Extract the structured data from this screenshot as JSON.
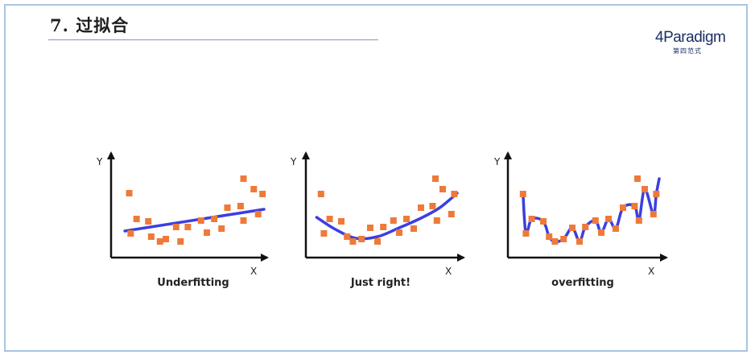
{
  "slide": {
    "title": "7. 过拟合"
  },
  "logo": {
    "main": "4Paradigm",
    "sub": "第四范式"
  },
  "panels": [
    {
      "caption": "Underfitting",
      "y_label": "Y",
      "x_label": "X",
      "points": [
        [
          0.08,
          0.3
        ],
        [
          0.13,
          0.62
        ],
        [
          0.09,
          0.8
        ],
        [
          0.23,
          0.84
        ],
        [
          0.21,
          0.65
        ],
        [
          0.29,
          0.9
        ],
        [
          0.33,
          0.87
        ],
        [
          0.43,
          0.9
        ],
        [
          0.4,
          0.72
        ],
        [
          0.48,
          0.72
        ],
        [
          0.57,
          0.64
        ],
        [
          0.61,
          0.79
        ],
        [
          0.66,
          0.62
        ],
        [
          0.71,
          0.74
        ],
        [
          0.75,
          0.48
        ],
        [
          0.84,
          0.46
        ],
        [
          0.86,
          0.12
        ],
        [
          0.93,
          0.25
        ],
        [
          0.86,
          0.64
        ],
        [
          0.96,
          0.56
        ],
        [
          0.99,
          0.31
        ]
      ],
      "curve": [
        [
          0.05,
          0.77
        ],
        [
          1.0,
          0.5
        ]
      ]
    },
    {
      "caption": "Just right!",
      "y_label": "Y",
      "x_label": "X",
      "points": [
        [
          0.06,
          0.31
        ],
        [
          0.12,
          0.62
        ],
        [
          0.08,
          0.8
        ],
        [
          0.2,
          0.65
        ],
        [
          0.24,
          0.84
        ],
        [
          0.28,
          0.9
        ],
        [
          0.34,
          0.87
        ],
        [
          0.4,
          0.73
        ],
        [
          0.45,
          0.9
        ],
        [
          0.49,
          0.72
        ],
        [
          0.56,
          0.64
        ],
        [
          0.6,
          0.79
        ],
        [
          0.65,
          0.62
        ],
        [
          0.7,
          0.74
        ],
        [
          0.75,
          0.48
        ],
        [
          0.83,
          0.46
        ],
        [
          0.85,
          0.12
        ],
        [
          0.9,
          0.25
        ],
        [
          0.86,
          0.64
        ],
        [
          0.96,
          0.56
        ],
        [
          0.98,
          0.31
        ]
      ],
      "curve": [
        [
          0.03,
          0.6
        ],
        [
          0.15,
          0.74
        ],
        [
          0.3,
          0.86
        ],
        [
          0.45,
          0.84
        ],
        [
          0.6,
          0.73
        ],
        [
          0.75,
          0.61
        ],
        [
          0.88,
          0.48
        ],
        [
          1.0,
          0.3
        ]
      ]
    },
    {
      "caption": "overfitting",
      "y_label": "Y",
      "x_label": "X",
      "points": [
        [
          0.06,
          0.31
        ],
        [
          0.12,
          0.62
        ],
        [
          0.08,
          0.8
        ],
        [
          0.2,
          0.65
        ],
        [
          0.24,
          0.84
        ],
        [
          0.28,
          0.9
        ],
        [
          0.34,
          0.87
        ],
        [
          0.4,
          0.73
        ],
        [
          0.45,
          0.9
        ],
        [
          0.49,
          0.72
        ],
        [
          0.56,
          0.64
        ],
        [
          0.6,
          0.79
        ],
        [
          0.65,
          0.62
        ],
        [
          0.7,
          0.74
        ],
        [
          0.75,
          0.48
        ],
        [
          0.83,
          0.46
        ],
        [
          0.85,
          0.12
        ],
        [
          0.9,
          0.25
        ],
        [
          0.86,
          0.64
        ],
        [
          0.96,
          0.56
        ],
        [
          0.98,
          0.31
        ]
      ],
      "curve": [
        [
          0.06,
          0.31
        ],
        [
          0.08,
          0.8
        ],
        [
          0.12,
          0.62
        ],
        [
          0.2,
          0.65
        ],
        [
          0.24,
          0.84
        ],
        [
          0.28,
          0.9
        ],
        [
          0.34,
          0.87
        ],
        [
          0.4,
          0.73
        ],
        [
          0.45,
          0.9
        ],
        [
          0.49,
          0.72
        ],
        [
          0.56,
          0.64
        ],
        [
          0.6,
          0.79
        ],
        [
          0.65,
          0.62
        ],
        [
          0.7,
          0.74
        ],
        [
          0.75,
          0.48
        ],
        [
          0.83,
          0.46
        ],
        [
          0.86,
          0.64
        ],
        [
          0.9,
          0.25
        ],
        [
          0.96,
          0.56
        ],
        [
          0.98,
          0.31
        ],
        [
          1.0,
          0.12
        ]
      ]
    }
  ],
  "colors": {
    "points": "#ee7a3a",
    "curve": "#3b3fe0",
    "axis": "#111111"
  }
}
